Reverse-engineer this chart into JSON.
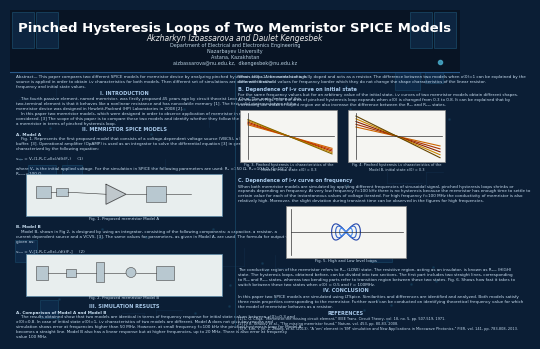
{
  "title": "Pinched Hysteresis Loops of Two Memristor SPICE Models",
  "authors": "Akzharkyn Izbassarova and Daulet Kengesbek",
  "affil1": "Department of Electrical and Electronics Engineering",
  "affil2": "Nazarbayev University",
  "affil3": "Astana, Kazakhstan",
  "affil4": "aizbassarova@nu.edu.kz,  dkengesbek@nu.edu.kz",
  "bg_dark": "#0b1e35",
  "bg_mid": "#0d2444",
  "header_bg": "#091628",
  "title_color": "#ffffff",
  "author_color": "#e8e8e8",
  "affil_color": "#b8cfe0",
  "text_color": "#c8ddef",
  "section_color": "#a8c8e8",
  "white": "#ffffff",
  "graph_bg": "#f0f0f0",
  "chip_color": "#1a3a5c",
  "abstract": "Abstract— This paper compares two different SPICE models for memristor device by analyzing pinched hysteresis loops. A sinusoidal voltage source is applied in order to obtain i-v characteristics for both models. Then different set of simulations are done with distinct frequency and initial state values.",
  "s1_title": "I. INTRODUCTION",
  "s1_text": "    The fourth passive element, named memristor, was firstly proposed 45 years ago by circuit theorist Leon Chua. The main feature of this two-terminal element is that it behaves like a nonlinear resistance and has nonvolatile memory [1]. The first solid-state prototype of the memristor device was designed in Hewlett-Packard (HP) Laboratories in 2008 [2].\n    In this paper two memristor models, which were designed in order to observe application of memristor in microwave devices, are considered. [3] The scope of this paper is to compare these two models and identify whether they follow the same basic characteristics as a memristor in terms of pinched hysteresis loop.",
  "s2_title": "II. MEMRISTOR SPICE MODELS",
  "s2a_title": "A. Model A",
  "s2a_text": "    Fig. 1. Represents the first proposed model that consists of a voltage-dependent voltage source (VBCS), a low pass filter (LPF), and buffer. [3]. Operational amplifier (OpAMP) is used as an integrator to solve the differential equation [3] in general. Model A is characterized by the following equation:\n\nv₀ᵤₜ = V₀(1-R₁C₁d(x)/d(t)F₁)     (1)\n\nwhere V₀ is the initial applied voltage. For the simulation in SPICE the following parameters are used: R₁ =150 Ω, R₂=10 kΩ, C=10⁻¹¹ F, R₃ₙₐₓ=100 Ω.",
  "fig1_caption": "Fig. 1. Proposed memristor Model A",
  "s2b_title": "B. Model B",
  "s2b_text": "    Model B, shown in Fig 2, is designed by using an integrator, consisting of the following components: a capacitor, a resistor, a current dependent source and a VCVS. [3]. The same values for parameters, as given in Model A, are used. The formula for output voltage is given as:\n\nv₀ᵤₜ = V₀[1-R₁C₁d(x)₀/d(t)F₁]     (2)",
  "fig2_caption": "Fig. 2. Proposed memristor Model B",
  "s3_title": "III. SIMULATION RESULTS",
  "s3a_title": "A. Comparison of Model A and Model B",
  "s3a_text": "    The results obtained show that two models are identical in terms of frequency response for initial state values between x(0)=0.3 and x(0)=0.8. In case of initial state x(0)=1, i-v characteristics of two models are different. Model A does not give any results and simulation shows error at frequencies higher than 50 MHz. However, at small frequency f=100 kHz the pinched hysteresis loop for Model A becomes a straight line. Model B also has a linear response but at higher frequencies, up to 20 MHz. There is also error at frequency value 100 MHz.",
  "r_top_text": "When x(0)=1, the memristor is fully doped and acts as a resistor. The difference between two models when x(0)=1 can be explained by the different threshold values for frequency border which they do not change the shape characteristics of the linear resistor.",
  "rB_title": "B. Dependence of i-v curve on initial state",
  "rB_text": "For the same frequency values but for an arbitrary value of the initial state, i-v curves of two memristor models obtain different shapes. As shown on Figs. 1-4, the area of pinched hysteresis loop expands when x(0) is changed from 0.3 to 0.8. It can be explained that by increasing the width of doped region we also increase the difference between the R₀ₙ and R₀ₙₙ states.",
  "fig3_caption": "Fig. 3. Pinched hysteresis i-v characteristics of the\nModel A, initial state x(0) = 0.3",
  "fig4_caption": "Fig. 4. Pinched hysteresis i-v characteristics of the\nModel B, initial state x(0) = 0.3",
  "rC_title": "C. Dependence of i-v curve on frequency",
  "rC_text": "When both memristor models are simulated by applying different frequencies of sinusoidal signal, pinched hysteresis loops shrinks or expands depending on frequency. At very low frequency f=100 kHz there is no hysteresis because the memristor has enough time to settle to certain value for each of the instantaneous values of voltage iterated. For high frequency f=100 MHz the conductivity of memristor is also relatively high. Moreover, the slight deviation during transient time can be observed in the figures for high frequencies.",
  "fig5_caption": "Fig. 5. High and Low level loops",
  "cond_text": "The conductive region of the memristor refers to R₀ₙ (LOW) state. The resistive region, acting as an insulator, is known as R₀ₙₙ (HIGH) state. The hysteresis loops, obtained before, can be divided into two sections. The first part includes two straight lines, corresponding to R₀ₙ and R₀ₙₙ states, whereas two bending parts refer to transition region between these two states. Fig. 6. Shows how fast it takes to switch between these two states when x(0) = 0.5 and f = 100MHz.",
  "s4_title": "IV. CONCLUSION",
  "s4_text": "In this paper two SPICE models are simulated using LTSpice. Similarities and differences are identified and analyzed. Both models satisfy three main properties corresponding to the memristor. Further work can be conducted on identifying theoretical frequency value for which the model of memristor behaves as a resistor.",
  "ref_title": "REFERENCES",
  "ref_text": "[1] L. O. Chua, \"Memristor-the missing circuit element,\" IEEE Trans. Circuit Theory, vol. 18, no. 5, pp. 507-519, 1971.\n[2] D. B. Strukov et al., \"The missing memristor found,\" Nature, vol. 453, pp. 80-83, 2008.\n[3] R. Lim, Y. Jin, Z. Zhang, et al. (2013). \"A 'em' element in 'EM' simulation and New Applications in Microwave Photonics,\" PIER, vol. 141, pp. 783-808, 2013."
}
